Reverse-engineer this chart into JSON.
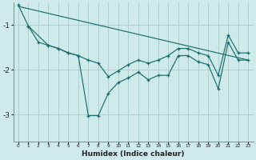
{
  "xlabel": "Humidex (Indice chaleur)",
  "bg_color": "#ceeaea",
  "grid_color": "#aed0d0",
  "line_color": "#1a6b6b",
  "xlim": [
    -0.5,
    23.5
  ],
  "ylim": [
    -3.6,
    -0.5
  ],
  "yticks": [
    -3,
    -2,
    -1
  ],
  "xticks": [
    0,
    1,
    2,
    3,
    4,
    5,
    6,
    7,
    8,
    9,
    10,
    11,
    12,
    13,
    14,
    15,
    16,
    17,
    18,
    19,
    20,
    21,
    22,
    23
  ],
  "line_straight": {
    "x": [
      0,
      23
    ],
    "y": [
      -0.58,
      -1.78
    ]
  },
  "line_zigzag": {
    "x": [
      0,
      1,
      2,
      3,
      4,
      5,
      6,
      7,
      8,
      9,
      10,
      11,
      12,
      13,
      14,
      15,
      16,
      17,
      18,
      19,
      20,
      21,
      22,
      23
    ],
    "y": [
      -0.55,
      -1.02,
      -1.38,
      -1.45,
      -1.52,
      -1.62,
      -1.68,
      -3.02,
      -3.02,
      -2.52,
      -2.28,
      -2.18,
      -2.05,
      -2.22,
      -2.12,
      -2.12,
      -1.68,
      -1.68,
      -1.82,
      -1.88,
      -2.42,
      -1.38,
      -1.78,
      -1.78
    ]
  },
  "line_mid": {
    "x": [
      1,
      3,
      4,
      5,
      6,
      7,
      8,
      9,
      10,
      11,
      12,
      13,
      14,
      15,
      16,
      17,
      18,
      19,
      20,
      21,
      22,
      23
    ],
    "y": [
      -1.02,
      -1.45,
      -1.52,
      -1.62,
      -1.68,
      -1.78,
      -1.85,
      -2.15,
      -2.02,
      -1.88,
      -1.78,
      -1.85,
      -1.78,
      -1.68,
      -1.52,
      -1.52,
      -1.62,
      -1.68,
      -2.12,
      -1.22,
      -1.62,
      -1.62
    ]
  }
}
